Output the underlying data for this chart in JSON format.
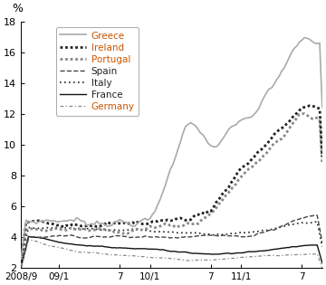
{
  "ylabel": "%",
  "ylim": [
    2,
    18
  ],
  "yticks": [
    2,
    4,
    6,
    8,
    10,
    12,
    14,
    16,
    18
  ],
  "xtick_labels": [
    "2008/9",
    "09/1",
    "7",
    "10/1",
    "7",
    "11/1",
    "7"
  ],
  "xtick_positions": [
    0,
    15,
    39,
    51,
    75,
    87,
    111
  ],
  "n_points": 120,
  "legend_entries": [
    {
      "label": "Greece",
      "color": "#aaaaaa",
      "lw": 1.2,
      "ls": "solid",
      "text_color": "#cc6600"
    },
    {
      "label": "Ireland",
      "color": "#222222",
      "lw": 2.0,
      "ls": "densely_dotted",
      "text_color": "#cc6600"
    },
    {
      "label": "Portugal",
      "color": "#888888",
      "lw": 2.0,
      "ls": "densely_dotted",
      "text_color": "#cc6600"
    },
    {
      "label": "Spain",
      "color": "#444444",
      "lw": 1.0,
      "ls": "dashed",
      "text_color": "#222222"
    },
    {
      "label": "Italy",
      "color": "#222222",
      "lw": 1.2,
      "ls": "dotted",
      "text_color": "#222222"
    },
    {
      "label": "France",
      "color": "#111111",
      "lw": 1.2,
      "ls": "solid",
      "text_color": "#222222"
    },
    {
      "label": "Germany",
      "color": "#888888",
      "lw": 1.0,
      "ls": "dashdot",
      "text_color": "#cc6600"
    }
  ]
}
